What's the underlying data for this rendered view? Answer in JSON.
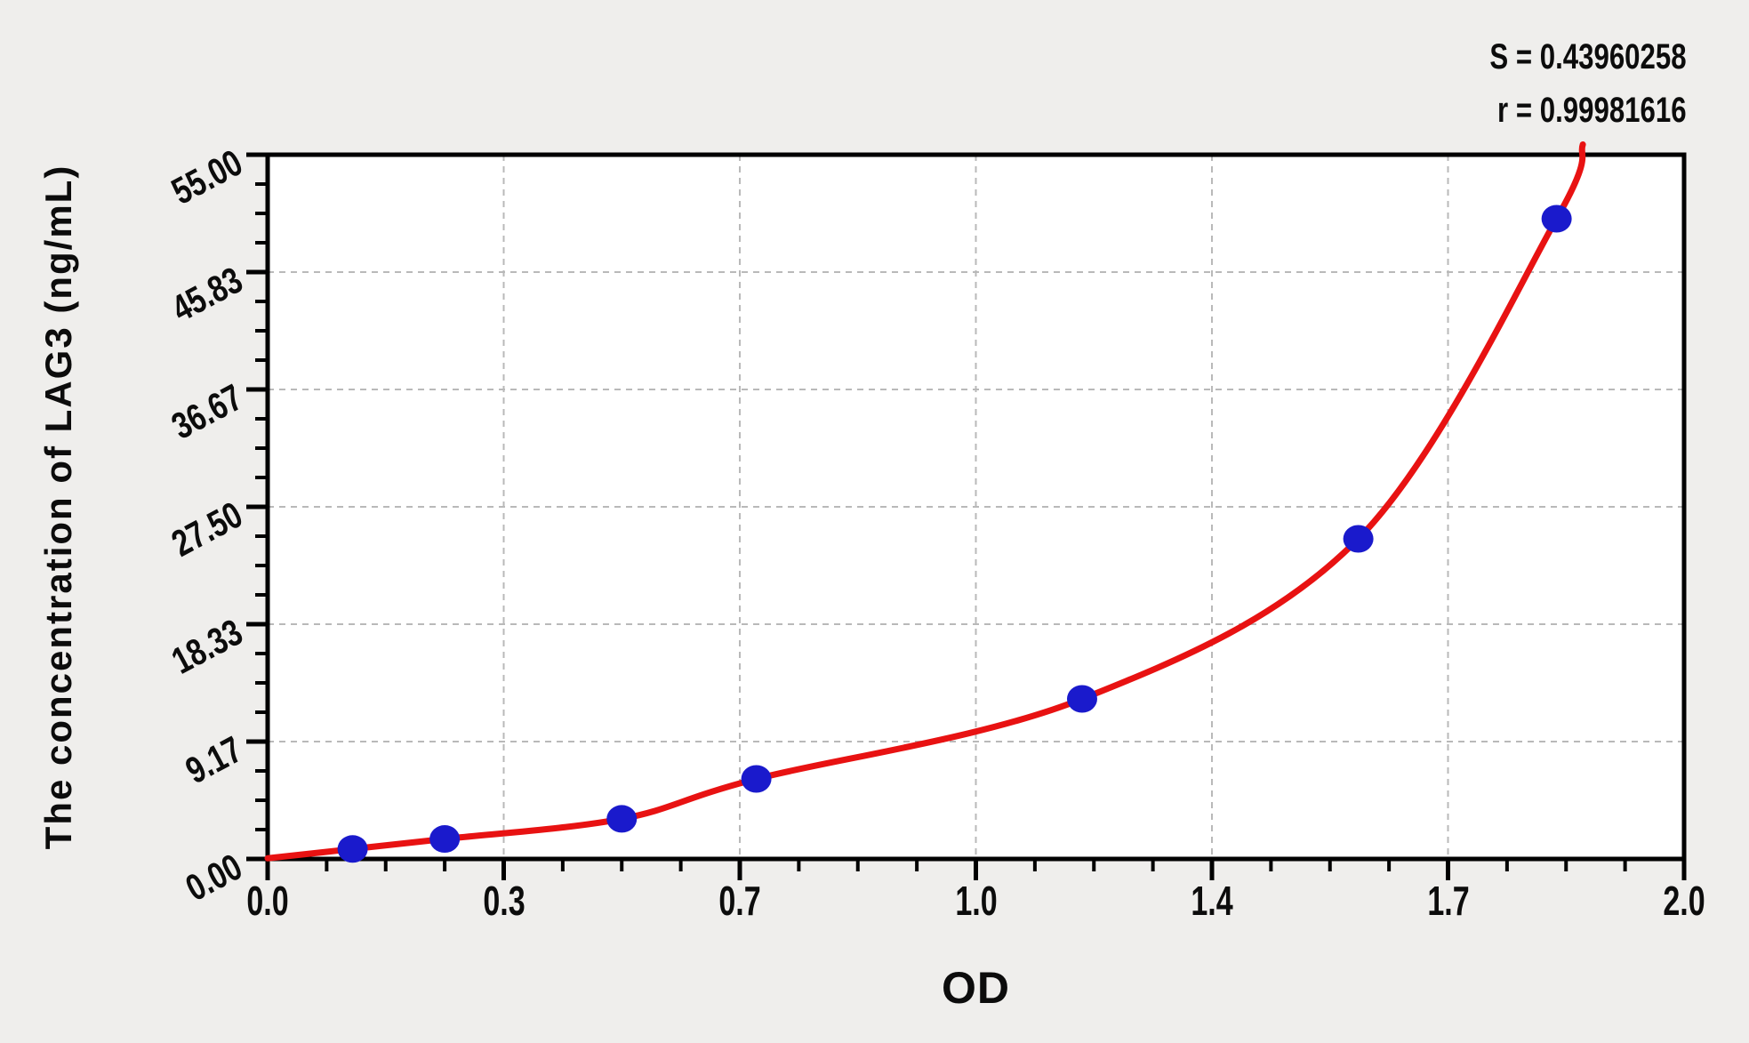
{
  "figure": {
    "background_color": "#efeeec",
    "plot_background_color": "#ffffff",
    "grid_color": "#b9b9b9",
    "axis_color": "#000000"
  },
  "stats": {
    "s_line": "S = 0.43960258",
    "r_line": "r = 0.99981616"
  },
  "chart_data": {
    "type": "scatter",
    "title": "",
    "xlabel": "OD",
    "ylabel": "The concentration of LAG3 (ng/mL)",
    "xlim": [
      0,
      2
    ],
    "ylim": [
      0,
      55
    ],
    "x_major_ticks": [
      0,
      0.3333,
      0.6667,
      1.0,
      1.3333,
      1.6667,
      2.0
    ],
    "x_tick_labels": [
      "0.0",
      "0.3",
      "0.7",
      "1.0",
      "1.4",
      "1.7",
      "2.0"
    ],
    "y_major_ticks": [
      0,
      9.17,
      18.33,
      27.5,
      36.67,
      45.83,
      55
    ],
    "y_tick_labels": [
      "0.00",
      "9.17",
      "18.33",
      "27.50",
      "36.67",
      "45.83",
      "55.00"
    ],
    "minor_divisions_per_major": 4,
    "grid": "dashed gray lines at major ticks, both axes",
    "legend_position": "none",
    "series": [
      {
        "name": "standard points",
        "marker": "circle",
        "color": "#1a1acc",
        "points": [
          {
            "od": 0.12,
            "conc": 0.78
          },
          {
            "od": 0.25,
            "conc": 1.56
          },
          {
            "od": 0.5,
            "conc": 3.13
          },
          {
            "od": 0.69,
            "conc": 6.25
          },
          {
            "od": 1.15,
            "conc": 12.5
          },
          {
            "od": 1.54,
            "conc": 25
          },
          {
            "od": 1.82,
            "conc": 50
          }
        ]
      },
      {
        "name": "fitted standard curve",
        "type": "line",
        "color": "#e81212",
        "anchors": [
          {
            "od": 0.0,
            "conc": 0.05
          },
          {
            "od": 0.12,
            "conc": 0.78
          },
          {
            "od": 0.25,
            "conc": 1.56
          },
          {
            "od": 0.5,
            "conc": 3.13
          },
          {
            "od": 0.69,
            "conc": 6.25
          },
          {
            "od": 1.15,
            "conc": 12.5
          },
          {
            "od": 1.54,
            "conc": 25
          },
          {
            "od": 1.82,
            "conc": 50
          },
          {
            "od": 1.857,
            "conc": 55.8
          }
        ]
      }
    ],
    "annotations": {
      "S": "0.43960258",
      "r": "0.99981616"
    }
  }
}
